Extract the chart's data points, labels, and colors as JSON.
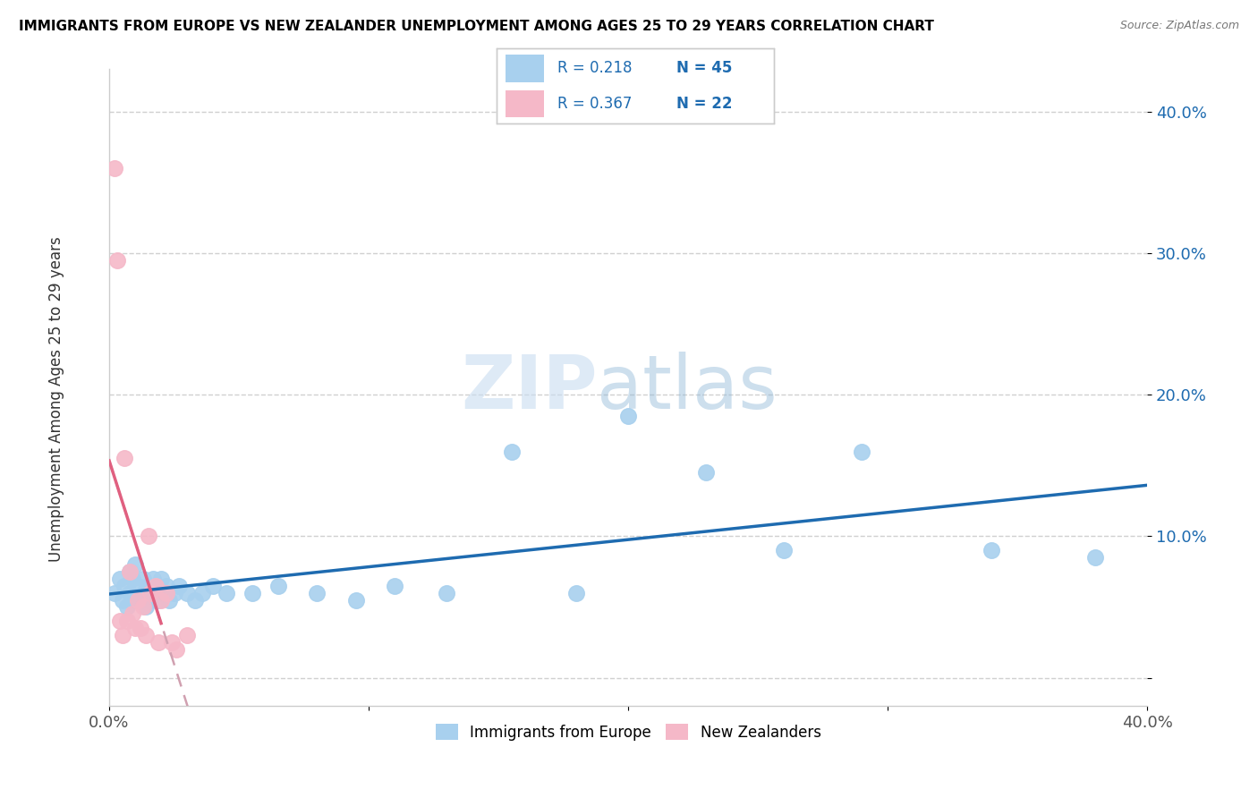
{
  "title": "IMMIGRANTS FROM EUROPE VS NEW ZEALANDER UNEMPLOYMENT AMONG AGES 25 TO 29 YEARS CORRELATION CHART",
  "source": "Source: ZipAtlas.com",
  "ylabel": "Unemployment Among Ages 25 to 29 years",
  "legend_label1": "Immigrants from Europe",
  "legend_label2": "New Zealanders",
  "r1": "0.218",
  "n1": "45",
  "r2": "0.367",
  "n2": "22",
  "color_blue": "#A8D0EE",
  "color_pink": "#F5B8C8",
  "color_blue_line": "#1E6BB0",
  "color_pink_line": "#E06080",
  "color_pink_dash": "#D0A0B0",
  "xlim": [
    0.0,
    0.4
  ],
  "ylim": [
    -0.02,
    0.43
  ],
  "yticks": [
    0.0,
    0.1,
    0.2,
    0.3,
    0.4
  ],
  "ytick_labels": [
    "",
    "10.0%",
    "20.0%",
    "30.0%",
    "40.0%"
  ],
  "xticks": [
    0.0,
    0.1,
    0.2,
    0.3,
    0.4
  ],
  "xtick_labels": [
    "0.0%",
    "",
    "",
    "",
    "40.0%"
  ],
  "blue_x": [
    0.002,
    0.004,
    0.005,
    0.006,
    0.007,
    0.008,
    0.008,
    0.009,
    0.01,
    0.01,
    0.011,
    0.012,
    0.013,
    0.013,
    0.014,
    0.015,
    0.016,
    0.017,
    0.018,
    0.019,
    0.02,
    0.021,
    0.022,
    0.023,
    0.025,
    0.027,
    0.03,
    0.033,
    0.036,
    0.04,
    0.045,
    0.055,
    0.065,
    0.08,
    0.095,
    0.11,
    0.13,
    0.155,
    0.18,
    0.2,
    0.23,
    0.26,
    0.29,
    0.34,
    0.38
  ],
  "blue_y": [
    0.06,
    0.07,
    0.055,
    0.065,
    0.05,
    0.075,
    0.06,
    0.07,
    0.055,
    0.08,
    0.065,
    0.055,
    0.06,
    0.07,
    0.05,
    0.065,
    0.055,
    0.07,
    0.06,
    0.055,
    0.07,
    0.06,
    0.065,
    0.055,
    0.06,
    0.065,
    0.06,
    0.055,
    0.06,
    0.065,
    0.06,
    0.06,
    0.065,
    0.06,
    0.055,
    0.065,
    0.06,
    0.16,
    0.06,
    0.185,
    0.145,
    0.09,
    0.16,
    0.09,
    0.085
  ],
  "pink_x": [
    0.002,
    0.003,
    0.004,
    0.005,
    0.006,
    0.007,
    0.008,
    0.009,
    0.01,
    0.011,
    0.012,
    0.013,
    0.014,
    0.015,
    0.016,
    0.018,
    0.019,
    0.02,
    0.022,
    0.024,
    0.026,
    0.03
  ],
  "pink_y": [
    0.36,
    0.295,
    0.04,
    0.03,
    0.155,
    0.04,
    0.075,
    0.045,
    0.035,
    0.055,
    0.035,
    0.05,
    0.03,
    0.1,
    0.06,
    0.065,
    0.025,
    0.055,
    0.06,
    0.025,
    0.02,
    0.03
  ],
  "watermark_zip_color": "#C8DCF0",
  "watermark_atlas_color": "#90B8D8"
}
